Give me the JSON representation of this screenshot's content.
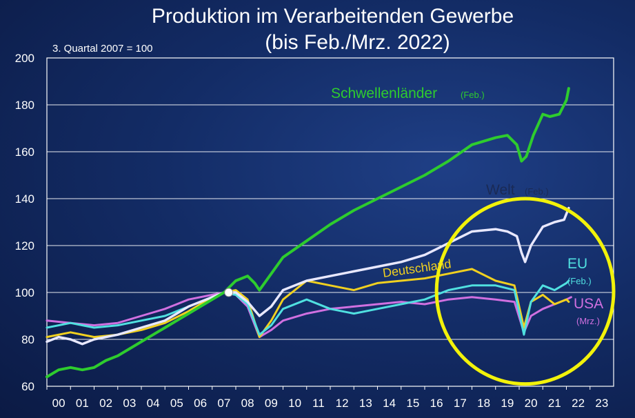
{
  "colors": {
    "emerging": "#2ecc2e",
    "world": "#e8e8ff",
    "germany": "#f0d020",
    "eu": "#50e0e0",
    "usa": "#d070e0",
    "highlight": "#f2f20a",
    "grid": "#ffffff"
  },
  "chart_data": {
    "type": "line",
    "title": "Produktion im Verarbeitenden Gewerbe",
    "subtitle": "(bis Feb./Mrz. 2022)",
    "note": "3. Quartal 2007 = 100",
    "ylim": [
      60,
      200
    ],
    "yticks": [
      "60",
      "80",
      "100",
      "120",
      "140",
      "160",
      "180",
      "200"
    ],
    "xticks": [
      "00",
      "01",
      "02",
      "03",
      "04",
      "05",
      "06",
      "07",
      "08",
      "09",
      "10",
      "11",
      "12",
      "13",
      "14",
      "15",
      "16",
      "17",
      "18",
      "19",
      "20",
      "21",
      "22",
      "23"
    ],
    "xlim": [
      2000,
      2024
    ],
    "grid": true,
    "base_point": {
      "x": 2007.7,
      "y": 100
    },
    "series": [
      {
        "name": "Schwellenländer",
        "note": "(Feb.)",
        "points": [
          [
            2000,
            64
          ],
          [
            2000.5,
            67
          ],
          [
            2001,
            68
          ],
          [
            2001.5,
            67
          ],
          [
            2002,
            68
          ],
          [
            2002.5,
            71
          ],
          [
            2003,
            73
          ],
          [
            2003.5,
            76
          ],
          [
            2004,
            79
          ],
          [
            2004.5,
            82
          ],
          [
            2005,
            85
          ],
          [
            2005.5,
            88
          ],
          [
            2006,
            91
          ],
          [
            2006.5,
            94
          ],
          [
            2007,
            97
          ],
          [
            2007.5,
            100
          ],
          [
            2008,
            105
          ],
          [
            2008.5,
            107
          ],
          [
            2008.8,
            104
          ],
          [
            2009,
            101
          ],
          [
            2009.5,
            108
          ],
          [
            2010,
            115
          ],
          [
            2011,
            122
          ],
          [
            2012,
            129
          ],
          [
            2013,
            135
          ],
          [
            2014,
            140
          ],
          [
            2015,
            145
          ],
          [
            2016,
            150
          ],
          [
            2017,
            156
          ],
          [
            2018,
            163
          ],
          [
            2019,
            166
          ],
          [
            2019.5,
            167
          ],
          [
            2019.9,
            163
          ],
          [
            2020.1,
            156
          ],
          [
            2020.3,
            158
          ],
          [
            2020.6,
            167
          ],
          [
            2021,
            176
          ],
          [
            2021.3,
            175
          ],
          [
            2021.7,
            176
          ],
          [
            2022.0,
            182
          ],
          [
            2022.1,
            187
          ]
        ]
      },
      {
        "name": "Welt",
        "note": "(Feb.)",
        "points": [
          [
            2000,
            79
          ],
          [
            2000.5,
            81
          ],
          [
            2001,
            80
          ],
          [
            2001.5,
            78
          ],
          [
            2002,
            80
          ],
          [
            2003,
            82
          ],
          [
            2004,
            85
          ],
          [
            2005,
            88
          ],
          [
            2006,
            94
          ],
          [
            2007,
            98
          ],
          [
            2007.5,
            100
          ],
          [
            2008,
            100
          ],
          [
            2008.5,
            96
          ],
          [
            2009,
            90
          ],
          [
            2009.5,
            94
          ],
          [
            2010,
            101
          ],
          [
            2011,
            105
          ],
          [
            2012,
            107
          ],
          [
            2013,
            109
          ],
          [
            2014,
            111
          ],
          [
            2015,
            113
          ],
          [
            2016,
            116
          ],
          [
            2017,
            121
          ],
          [
            2018,
            126
          ],
          [
            2019,
            127
          ],
          [
            2019.5,
            126
          ],
          [
            2019.9,
            124
          ],
          [
            2020.1,
            117
          ],
          [
            2020.25,
            113
          ],
          [
            2020.5,
            120
          ],
          [
            2021,
            128
          ],
          [
            2021.5,
            130
          ],
          [
            2021.9,
            131
          ],
          [
            2022.1,
            136
          ]
        ]
      },
      {
        "name": "Deutschland",
        "note": "",
        "points": [
          [
            2000,
            81
          ],
          [
            2001,
            83
          ],
          [
            2002,
            81
          ],
          [
            2003,
            82
          ],
          [
            2004,
            84
          ],
          [
            2005,
            87
          ],
          [
            2006,
            92
          ],
          [
            2007,
            98
          ],
          [
            2007.5,
            100
          ],
          [
            2008,
            101
          ],
          [
            2008.5,
            97
          ],
          [
            2009,
            81
          ],
          [
            2009.5,
            88
          ],
          [
            2010,
            97
          ],
          [
            2011,
            105
          ],
          [
            2012,
            103
          ],
          [
            2013,
            101
          ],
          [
            2014,
            104
          ],
          [
            2015,
            105
          ],
          [
            2016,
            106
          ],
          [
            2017,
            108
          ],
          [
            2018,
            110
          ],
          [
            2019,
            105
          ],
          [
            2019.8,
            103
          ],
          [
            2020.2,
            85
          ],
          [
            2020.5,
            96
          ],
          [
            2021,
            99
          ],
          [
            2021.5,
            95
          ],
          [
            2022.0,
            97
          ],
          [
            2022.1,
            96
          ]
        ]
      },
      {
        "name": "EU",
        "note": "(Feb.)",
        "points": [
          [
            2000,
            85
          ],
          [
            2001,
            87
          ],
          [
            2002,
            85
          ],
          [
            2003,
            86
          ],
          [
            2004,
            88
          ],
          [
            2005,
            90
          ],
          [
            2006,
            94
          ],
          [
            2007,
            98
          ],
          [
            2007.5,
            100
          ],
          [
            2008,
            99
          ],
          [
            2008.5,
            95
          ],
          [
            2009,
            82
          ],
          [
            2009.5,
            86
          ],
          [
            2010,
            93
          ],
          [
            2011,
            97
          ],
          [
            2012,
            93
          ],
          [
            2013,
            91
          ],
          [
            2014,
            93
          ],
          [
            2015,
            95
          ],
          [
            2016,
            97
          ],
          [
            2017,
            101
          ],
          [
            2018,
            103
          ],
          [
            2019,
            103
          ],
          [
            2019.8,
            101
          ],
          [
            2020.2,
            82
          ],
          [
            2020.5,
            96
          ],
          [
            2021,
            103
          ],
          [
            2021.5,
            101
          ],
          [
            2022.0,
            104
          ],
          [
            2022.1,
            105
          ]
        ]
      },
      {
        "name": "USA",
        "note": "(Mrz.)",
        "points": [
          [
            2000,
            88
          ],
          [
            2001,
            87
          ],
          [
            2002,
            86
          ],
          [
            2003,
            87
          ],
          [
            2004,
            90
          ],
          [
            2005,
            93
          ],
          [
            2006,
            97
          ],
          [
            2007,
            99
          ],
          [
            2007.5,
            100
          ],
          [
            2008,
            99
          ],
          [
            2008.5,
            94
          ],
          [
            2009,
            81
          ],
          [
            2009.5,
            84
          ],
          [
            2010,
            88
          ],
          [
            2011,
            91
          ],
          [
            2012,
            93
          ],
          [
            2013,
            94
          ],
          [
            2014,
            95
          ],
          [
            2015,
            96
          ],
          [
            2016,
            95
          ],
          [
            2017,
            97
          ],
          [
            2018,
            98
          ],
          [
            2019,
            97
          ],
          [
            2019.8,
            96
          ],
          [
            2020.2,
            83
          ],
          [
            2020.5,
            90
          ],
          [
            2021,
            93
          ],
          [
            2021.5,
            95
          ],
          [
            2022.0,
            97
          ],
          [
            2022.2,
            98
          ]
        ]
      }
    ],
    "highlight": {
      "shape": "ellipse",
      "color": "yellow",
      "x_range": [
        2016.5,
        2024.0
      ],
      "y_range": [
        61,
        140
      ]
    }
  }
}
